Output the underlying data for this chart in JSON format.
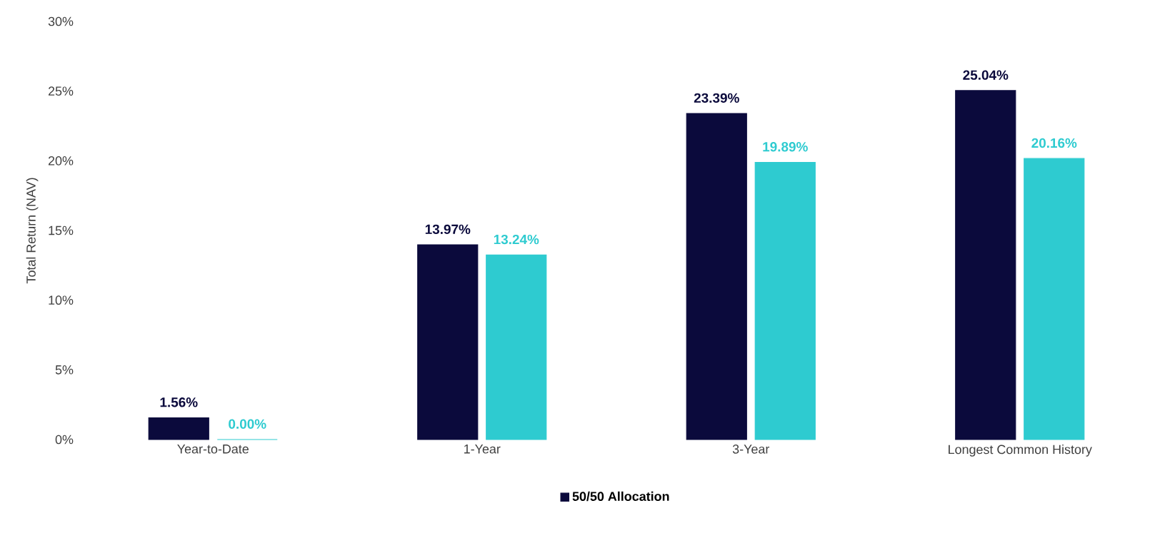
{
  "chart_data": {
    "type": "bar",
    "ylabel": "Total Return (NAV)",
    "categories": [
      "Year-to-Date",
      "1-Year",
      "3-Year",
      "Longest Common History"
    ],
    "series": [
      {
        "name": "50/50 Allocation",
        "color": "#0b0a3c",
        "values": [
          1.56,
          13.97,
          23.39,
          25.04
        ],
        "value_labels": [
          "1.56%",
          "13.97%",
          "23.39%",
          "25.04%"
        ]
      },
      {
        "color": "#2ecbd0",
        "values": [
          0.0,
          13.24,
          19.89,
          20.16
        ],
        "value_labels": [
          "0.00%",
          "13.24%",
          "19.89%",
          "20.16%"
        ]
      }
    ],
    "ylim": [
      0,
      30
    ],
    "yticks": [
      {
        "value": 0,
        "label": "0%"
      },
      {
        "value": 5,
        "label": "5%"
      },
      {
        "value": 10,
        "label": "10%"
      },
      {
        "value": 15,
        "label": "15%"
      },
      {
        "value": 20,
        "label": "20%"
      },
      {
        "value": 25,
        "label": "25%"
      },
      {
        "value": 30,
        "label": "30%"
      }
    ],
    "grid": false,
    "legend": "bottom"
  }
}
